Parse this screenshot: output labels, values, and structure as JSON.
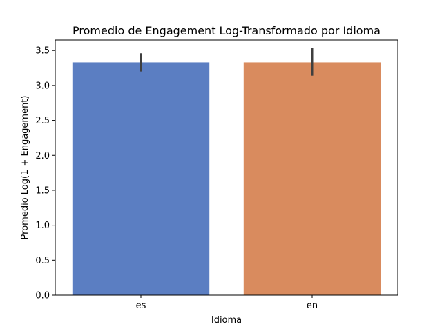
{
  "chart_data": {
    "type": "bar",
    "title": "Promedio de Engagement Log-Transformado por Idioma",
    "xlabel": "Idioma",
    "ylabel": "Promedio Log(1 + Engagement)",
    "categories": [
      "es",
      "en"
    ],
    "values": [
      3.33,
      3.33
    ],
    "error_bars": [
      [
        3.2,
        3.46
      ],
      [
        3.14,
        3.54
      ]
    ],
    "colors": [
      "#5b7ec2",
      "#d98b5e"
    ],
    "ylim": [
      0,
      3.65
    ],
    "yticks": [
      0.0,
      0.5,
      1.0,
      1.5,
      2.0,
      2.5,
      3.0,
      3.5
    ],
    "ytick_labels": [
      "0.0",
      "0.5",
      "1.0",
      "1.5",
      "2.0",
      "2.5",
      "3.0",
      "3.5"
    ],
    "grid": false,
    "legend": "none"
  }
}
